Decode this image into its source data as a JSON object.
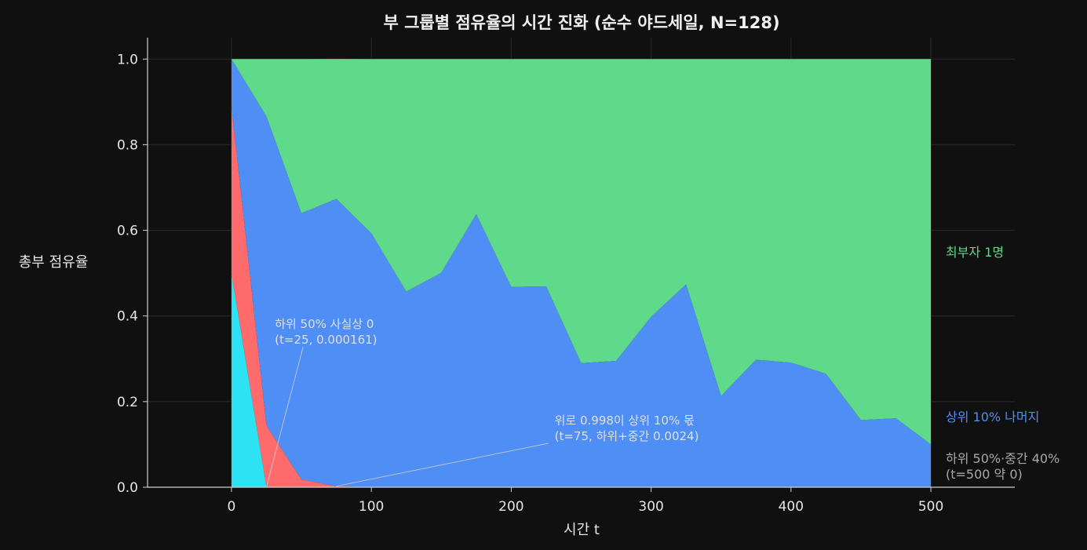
{
  "chart_data": {
    "type": "area",
    "title": "부 그룹별 점유율의 시간 진화 (순수 야드세일, N=128)",
    "xlabel": "시간 t",
    "ylabel": "총부 점유율",
    "xlim": [
      -60,
      560
    ],
    "ylim": [
      0.0,
      1.05
    ],
    "xticks": [
      "0",
      "100",
      "200",
      "300",
      "400",
      "500"
    ],
    "yticks": [
      "0.0",
      "0.2",
      "0.4",
      "0.6",
      "0.8",
      "1.0"
    ],
    "grid": true,
    "stacked": true,
    "x": [
      0,
      25,
      50,
      75,
      100,
      125,
      150,
      175,
      200,
      225,
      250,
      275,
      300,
      325,
      350,
      375,
      400,
      425,
      450,
      475,
      500
    ],
    "series": [
      {
        "name": "하위 50%",
        "color": "#2de2f2",
        "values": [
          0.5,
          0.000161,
          0,
          0,
          0,
          0,
          0,
          0,
          0,
          0,
          0,
          0,
          0,
          0,
          0,
          0,
          0,
          0,
          0,
          0,
          0
        ]
      },
      {
        "name": "중간 40%",
        "color": "#ff6b6b",
        "values": [
          0.39,
          0.144,
          0.018,
          0.0024,
          0,
          0,
          0,
          0,
          0,
          0,
          0,
          0,
          0,
          0,
          0,
          0,
          0,
          0,
          0,
          0,
          0
        ]
      },
      {
        "name": "상위 10% 나머지",
        "color": "#4f8ef5",
        "values": [
          0.11,
          0.722,
          0.622,
          0.671,
          0.593,
          0.457,
          0.501,
          0.638,
          0.468,
          0.469,
          0.29,
          0.295,
          0.398,
          0.474,
          0.213,
          0.298,
          0.291,
          0.265,
          0.157,
          0.161,
          0.1
        ]
      },
      {
        "name": "최부자 1명",
        "color": "#5fd98a",
        "values": [
          0,
          0.134,
          0.36,
          0.327,
          0.407,
          0.543,
          0.499,
          0.362,
          0.532,
          0.531,
          0.71,
          0.705,
          0.602,
          0.526,
          0.787,
          0.702,
          0.709,
          0.735,
          0.843,
          0.839,
          0.9
        ]
      }
    ],
    "annotations": [
      {
        "text": "하위 50% 사실상 0",
        "text2": "(t=25, 0.000161)",
        "at": [
          25,
          0.000161
        ],
        "text_at": [
          31,
          0.335
        ]
      },
      {
        "text": "위로 0.998이 상위 10% 몫",
        "text2": "(t=75, 하위+중간 0.0024)",
        "at": [
          75,
          0.0024
        ],
        "text_at": [
          231,
          0.11
        ]
      }
    ],
    "side_labels": [
      {
        "text": "최부자 1명",
        "color": "#5fd98a",
        "y": 0.55
      },
      {
        "text": "상위 10% 나머지",
        "color": "#4f8ef5",
        "y": 0.165
      },
      {
        "text": "하위 50%·중간 40%",
        "text2": "(t=500 약 0)",
        "color": "#a8a8a8",
        "y": 0.068
      }
    ]
  }
}
